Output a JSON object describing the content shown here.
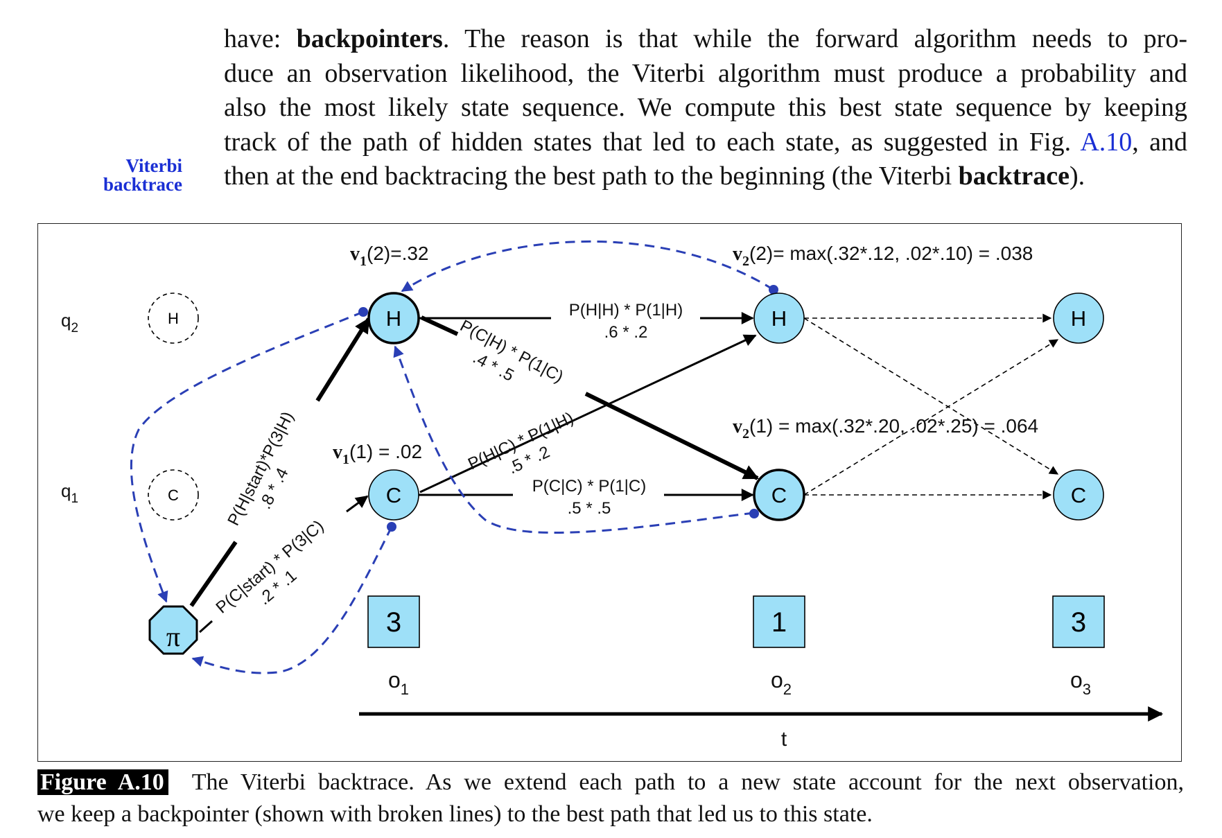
{
  "margin_note": {
    "line1": "Viterbi",
    "line2": "backtrace"
  },
  "paragraph": {
    "l1_a": "have: ",
    "l1_b": "backpointers",
    "l1_c": ". The reason is that while the forward algorithm needs to pro-",
    "l2": "duce an observation likelihood, the Viterbi algorithm must produce a probability and",
    "l3": "also the most likely state sequence. We compute this best state sequence by keeping",
    "l4_a": "track of the path of hidden states that led to each state, as suggested in Fig. ",
    "l4_link": "A.10",
    "l4_b": ", and",
    "l5_a": "then at the end backtracing the best path to the beginning (the Viterbi ",
    "l5_b": "backtrace",
    "l5_c": ")."
  },
  "figure": {
    "row_labels": {
      "q2": "q",
      "q2_sub": "2",
      "q1": "q",
      "q1_sub": "1"
    },
    "ghost_states": {
      "h": "H",
      "c": "C"
    },
    "start_symbol": "π",
    "states": {
      "h": "H",
      "c": "C"
    },
    "v1_2": {
      "v": "v",
      "sub": "1",
      "rest": "(2)=.32"
    },
    "v1_1": {
      "v": "v",
      "sub": "1",
      "rest": "(1) = .02"
    },
    "v2_2": {
      "v": "v",
      "sub": "2",
      "rest": "(2)= max(.32*.12, .02*.10) = .038"
    },
    "v2_1": {
      "v": "v",
      "sub": "2",
      "rest": "(1) = max(.32*.20, .02*.25) = .064"
    },
    "edge_labels": {
      "start_h_1": "P(H|start)*P(3|H)",
      "start_h_2": ".8 * .4",
      "start_c_1": "P(C|start) * P(3|C)",
      "start_c_2": ".2 * .1",
      "hh_1": "P(H|H) * P(1|H)",
      "hh_2": ".6 * .2",
      "ch_1": "P(C|H) * P(1|C)",
      "ch_2": ".4 * .5",
      "hc_1": "P(H|C) * P(1|H)",
      "hc_2": ".5 * .2",
      "cc_1": "P(C|C) * P(1|C)",
      "cc_2": ".5 * .5"
    },
    "observations": [
      "3",
      "1",
      "3"
    ],
    "obs_labels": [
      {
        "o": "o",
        "sub": "1"
      },
      {
        "o": "o",
        "sub": "2"
      },
      {
        "o": "o",
        "sub": "3"
      }
    ],
    "time_label": "t",
    "colors": {
      "state_fill": "#9ee0f8",
      "backpointer": "#2a3fb5",
      "ink": "#000000"
    }
  },
  "caption": {
    "label": "Figure A.10",
    "text1": "The Viterbi backtrace. As we extend each path to a new state account for the next observation,",
    "text2": "we keep a backpointer (shown with broken lines) to the best path that led us to this state."
  }
}
